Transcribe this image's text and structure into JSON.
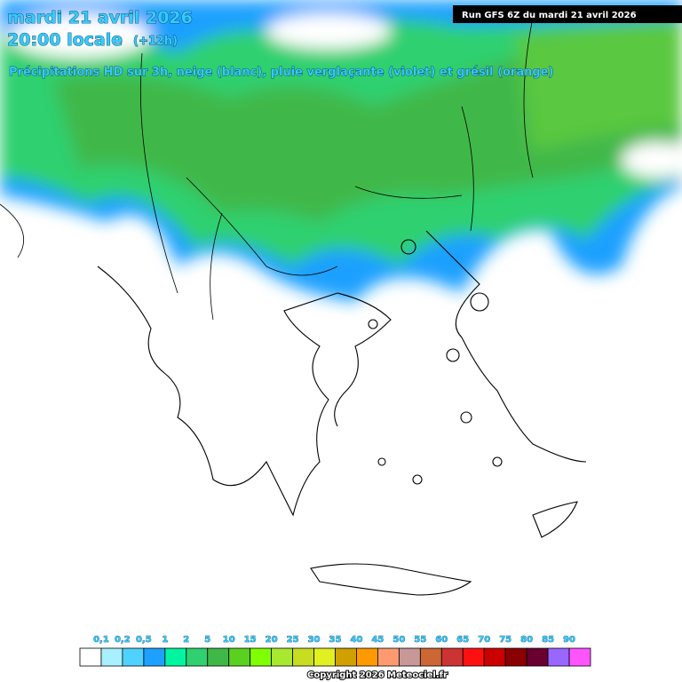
{
  "header": {
    "date": "mardi 21 avril 2026",
    "time": "20:00 locale",
    "offset": "(+12h)",
    "subtitle": "Précipitations HD sur 3h, neige (blanc), pluie verglaçante (violet) et grésil (orange)",
    "run": "Run GFS 6Z du mardi 21 avril 2026"
  },
  "legend": {
    "labels": [
      "0,1",
      "0,2",
      "0,5",
      "1",
      "2",
      "5",
      "10",
      "15",
      "20",
      "25",
      "30",
      "35",
      "40",
      "45",
      "50",
      "55",
      "60",
      "65",
      "70",
      "75",
      "80",
      "85",
      "90"
    ],
    "colors": [
      "#ffffff",
      "#a8f0ff",
      "#4fd2ff",
      "#1ea0ff",
      "#00f5a0",
      "#2fd070",
      "#40b848",
      "#5ad020",
      "#80ff00",
      "#a8e830",
      "#c8dc20",
      "#e0f020",
      "#d0a000",
      "#ff9900",
      "#ff9a70",
      "#c89898",
      "#cc6633",
      "#cc3333",
      "#ff1010",
      "#cc0000",
      "#8b0000",
      "#6a0030",
      "#9966ff",
      "#ff55ff"
    ]
  },
  "footer": {
    "copyright": "Copyright 2026 Meteociel.fr"
  }
}
